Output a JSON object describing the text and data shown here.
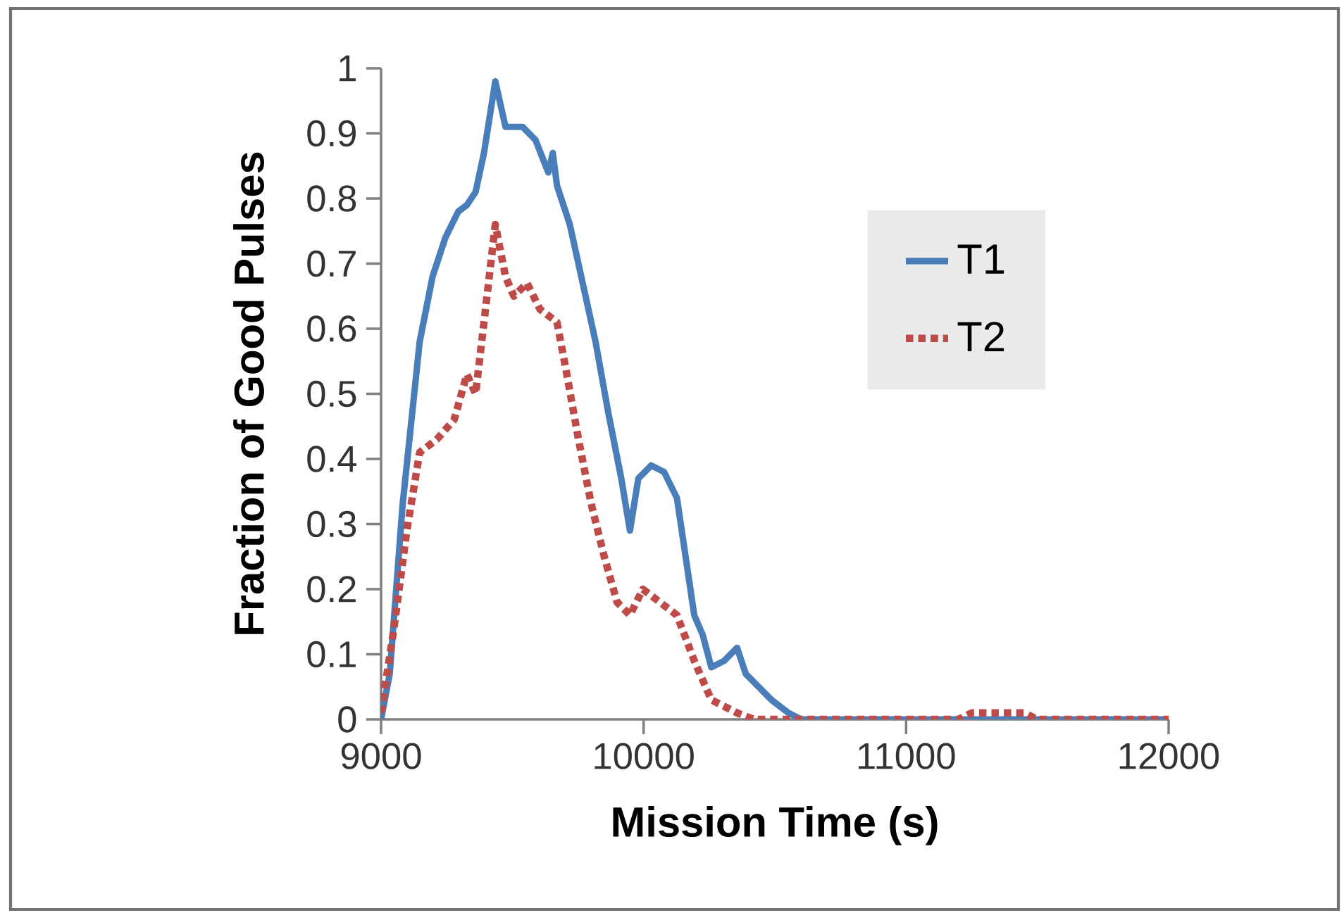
{
  "chart_data": {
    "type": "line",
    "xlabel": "Mission Time (s)",
    "ylabel": "Fraction of Good Pulses",
    "xlim": [
      9000,
      12000
    ],
    "xticks": [
      9000,
      10000,
      11000,
      12000
    ],
    "ylim": [
      0,
      1
    ],
    "yticks": [
      0,
      0.1,
      0.2,
      0.3,
      0.4,
      0.5,
      0.6,
      0.7,
      0.8,
      0.9,
      1
    ],
    "grid": false,
    "legend": "top right",
    "marker": "none",
    "series": [
      {
        "name": "T1",
        "color": "#4a7ebb",
        "line_style": "solid",
        "x": [
          9000,
          9033,
          9082,
          9147,
          9196,
          9245,
          9294,
          9327,
          9360,
          9392,
          9435,
          9474,
          9539,
          9588,
          9637,
          9654,
          9670,
          9719,
          9768,
          9817,
          9866,
          9915,
          9948,
          9980,
          10029,
          10078,
          10127,
          10160,
          10193,
          10225,
          10258,
          10307,
          10356,
          10389,
          10438,
          10487,
          10552,
          10601,
          12000
        ],
        "values": [
          0,
          0.07,
          0.33,
          0.58,
          0.68,
          0.74,
          0.78,
          0.79,
          0.81,
          0.87,
          0.98,
          0.91,
          0.91,
          0.89,
          0.84,
          0.87,
          0.82,
          0.76,
          0.67,
          0.58,
          0.47,
          0.37,
          0.29,
          0.37,
          0.39,
          0.38,
          0.34,
          0.25,
          0.16,
          0.13,
          0.08,
          0.09,
          0.11,
          0.07,
          0.05,
          0.03,
          0.01,
          0,
          0
        ]
      },
      {
        "name": "T2",
        "color": "#be4b48",
        "line_style": "dotted",
        "x": [
          9000,
          9049,
          9098,
          9147,
          9212,
          9278,
          9327,
          9360,
          9392,
          9435,
          9474,
          9506,
          9556,
          9605,
          9670,
          9703,
          9752,
          9801,
          9850,
          9899,
          9948,
          9997,
          10062,
          10127,
          10193,
          10258,
          10356,
          10421,
          11200,
          11250,
          11450,
          11500,
          12000
        ],
        "values": [
          0.01,
          0.14,
          0.29,
          0.41,
          0.43,
          0.46,
          0.53,
          0.5,
          0.61,
          0.76,
          0.68,
          0.65,
          0.67,
          0.63,
          0.61,
          0.54,
          0.43,
          0.33,
          0.25,
          0.18,
          0.16,
          0.2,
          0.18,
          0.16,
          0.09,
          0.03,
          0.01,
          0,
          0,
          0.01,
          0.01,
          0,
          0
        ]
      }
    ]
  }
}
